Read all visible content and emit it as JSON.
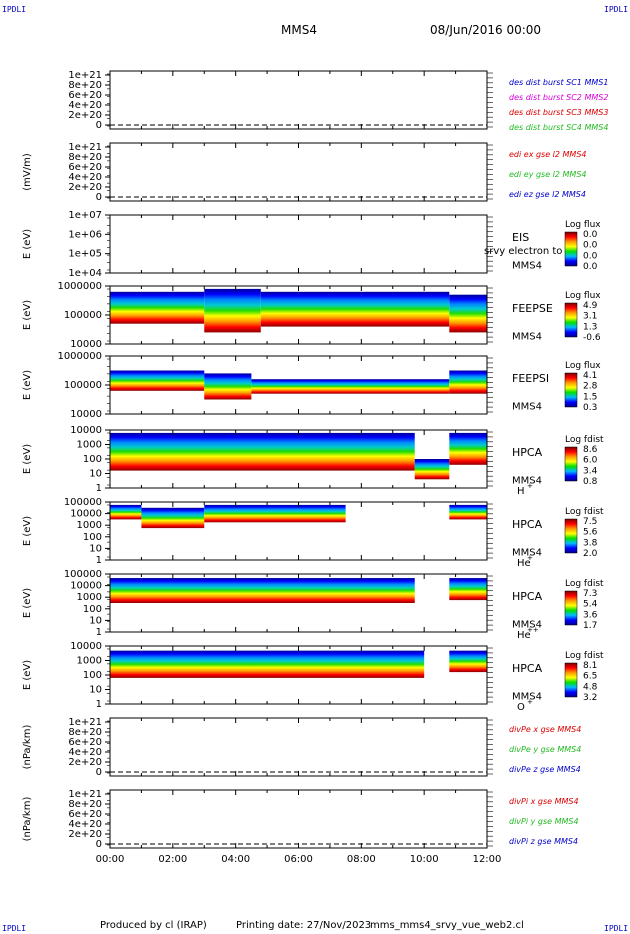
{
  "header": {
    "spacecraft": "MMS4",
    "date": "08/Jun/2016 00:00",
    "corner_label": "IPDLI"
  },
  "footer": {
    "produced_by": "Produced by cl (IRAP)",
    "printing_date": "Printing date: 27/Nov/2023",
    "script": "mms_mms4_srvy_vue_web2.cl"
  },
  "time_axis": {
    "ticks": [
      "00:00",
      "02:00",
      "04:00",
      "06:00",
      "08:00",
      "10:00",
      "12:00"
    ]
  },
  "colors": {
    "red": "#dd0000",
    "green": "#22bb22",
    "blue": "#0000cc",
    "magenta": "#dd00dd",
    "colorbar": [
      "#7a0000",
      "#ff0000",
      "#ff9900",
      "#ffff00",
      "#00e000",
      "#00bbff",
      "#0000ff",
      "#000088"
    ]
  },
  "chart_data": [
    {
      "type": "line",
      "ylabel": "",
      "ytick_labels": [
        "1e+21",
        "8e+20",
        "6e+20",
        "4e+20",
        "2e+20",
        "0"
      ],
      "legend": [
        {
          "text": "des dist burst SC1 MMS1",
          "color": "blue"
        },
        {
          "text": "des dist burst SC2 MMS2",
          "color": "magenta"
        },
        {
          "text": "des dist burst SC3 MMS3",
          "color": "red"
        },
        {
          "text": "des dist burst SC4 MMS4",
          "color": "green"
        }
      ],
      "series": []
    },
    {
      "type": "line",
      "ylabel": "(mV/m)",
      "ytick_labels": [
        "1e+21",
        "8e+20",
        "6e+20",
        "4e+20",
        "2e+20",
        "0"
      ],
      "legend": [
        {
          "text": "edi ex gse l2 MMS4",
          "color": "red"
        },
        {
          "text": "edi ey gse l2 MMS4",
          "color": "green"
        },
        {
          "text": "edi ez gse l2 MMS4",
          "color": "blue"
        }
      ],
      "series": []
    },
    {
      "type": "heatmap",
      "ylabel": "E (eV)",
      "ytick_labels": [
        "1e+07",
        "1e+06",
        "1e+05",
        "1e+04"
      ],
      "instrument": "EIS",
      "extra_label": "srvy electron to",
      "spacecraft": "MMS4",
      "colorbar_title": "Log flux",
      "colorbar_values": [
        "0.0",
        "0.0",
        "0.0",
        "0.0"
      ],
      "segments": []
    },
    {
      "type": "heatmap",
      "ylabel": "E (eV)",
      "ytick_labels": [
        "1000000",
        "100000",
        "10000"
      ],
      "instrument": "FEEPSE",
      "spacecraft": "MMS4",
      "colorbar_title": "Log flux",
      "colorbar_values": [
        "4.9",
        "3.1",
        "1.3",
        "-0.6"
      ],
      "segments": [
        {
          "start": 0.0,
          "end": 3.0,
          "top": 0.9,
          "bottom": 0.35
        },
        {
          "start": 3.0,
          "end": 4.8,
          "top": 0.95,
          "bottom": 0.2
        },
        {
          "start": 4.8,
          "end": 10.8,
          "top": 0.9,
          "bottom": 0.3
        },
        {
          "start": 10.8,
          "end": 12.0,
          "top": 0.85,
          "bottom": 0.2
        }
      ]
    },
    {
      "type": "heatmap",
      "ylabel": "E (eV)",
      "ytick_labels": [
        "1000000",
        "100000",
        "10000"
      ],
      "instrument": "FEEPSI",
      "spacecraft": "MMS4",
      "colorbar_title": "Log flux",
      "colorbar_values": [
        "4.1",
        "2.8",
        "1.5",
        "0.3"
      ],
      "segments": [
        {
          "start": 0.0,
          "end": 3.0,
          "top": 0.75,
          "bottom": 0.4
        },
        {
          "start": 3.0,
          "end": 4.5,
          "top": 0.7,
          "bottom": 0.25
        },
        {
          "start": 4.5,
          "end": 10.8,
          "top": 0.6,
          "bottom": 0.35
        },
        {
          "start": 10.8,
          "end": 12.0,
          "top": 0.75,
          "bottom": 0.35
        }
      ]
    },
    {
      "type": "heatmap",
      "ylabel": "E (eV)",
      "ytick_labels": [
        "10000",
        "1000",
        "100",
        "10",
        "1"
      ],
      "instrument": "HPCA",
      "spacecraft": "MMS4",
      "species": "H",
      "species_charge": "+",
      "colorbar_title": "Log fdist",
      "colorbar_values": [
        "8.6",
        "6.0",
        "3.4",
        "0.8"
      ],
      "segments": [
        {
          "start": 0.0,
          "end": 9.7,
          "top": 0.95,
          "bottom": 0.3
        },
        {
          "start": 9.7,
          "end": 10.8,
          "top": 0.5,
          "bottom": 0.15
        },
        {
          "start": 10.8,
          "end": 12.0,
          "top": 0.95,
          "bottom": 0.4
        }
      ]
    },
    {
      "type": "heatmap",
      "ylabel": "E (eV)",
      "ytick_labels": [
        "100000",
        "10000",
        "1000",
        "100",
        "10",
        "1"
      ],
      "instrument": "HPCA",
      "spacecraft": "MMS4",
      "species": "He",
      "species_charge": "+",
      "colorbar_title": "Log fdist",
      "colorbar_values": [
        "7.5",
        "5.6",
        "3.8",
        "2.0"
      ],
      "segments": [
        {
          "start": 0.0,
          "end": 1.0,
          "top": 0.95,
          "bottom": 0.7
        },
        {
          "start": 1.0,
          "end": 3.0,
          "top": 0.9,
          "bottom": 0.55
        },
        {
          "start": 3.0,
          "end": 7.5,
          "top": 0.95,
          "bottom": 0.65
        },
        {
          "start": 10.8,
          "end": 12.0,
          "top": 0.95,
          "bottom": 0.7
        }
      ]
    },
    {
      "type": "heatmap",
      "ylabel": "E (eV)",
      "ytick_labels": [
        "100000",
        "10000",
        "1000",
        "100",
        "10",
        "1"
      ],
      "instrument": "HPCA",
      "spacecraft": "MMS4",
      "species": "He",
      "species_charge": "++",
      "colorbar_title": "Log fdist",
      "colorbar_values": [
        "7.3",
        "5.4",
        "3.6",
        "1.7"
      ],
      "segments": [
        {
          "start": 0.0,
          "end": 9.7,
          "top": 0.93,
          "bottom": 0.5
        },
        {
          "start": 10.8,
          "end": 12.0,
          "top": 0.93,
          "bottom": 0.55
        }
      ]
    },
    {
      "type": "heatmap",
      "ylabel": "E (eV)",
      "ytick_labels": [
        "10000",
        "1000",
        "100",
        "10",
        "1"
      ],
      "instrument": "HPCA",
      "spacecraft": "MMS4",
      "species": "O",
      "species_charge": "+",
      "colorbar_title": "Log fdist",
      "colorbar_values": [
        "8.1",
        "6.5",
        "4.8",
        "3.2"
      ],
      "segments": [
        {
          "start": 0.0,
          "end": 10.0,
          "top": 0.92,
          "bottom": 0.45
        },
        {
          "start": 10.8,
          "end": 12.0,
          "top": 0.92,
          "bottom": 0.55
        }
      ]
    },
    {
      "type": "line",
      "ylabel": "(nPa/km)",
      "ytick_labels": [
        "1e+21",
        "8e+20",
        "6e+20",
        "4e+20",
        "2e+20",
        "0"
      ],
      "legend": [
        {
          "text": "divPe x gse MMS4",
          "color": "red"
        },
        {
          "text": "divPe y gse MMS4",
          "color": "green"
        },
        {
          "text": "divPe z gse MMS4",
          "color": "blue"
        }
      ],
      "series": []
    },
    {
      "type": "line",
      "ylabel": "(nPa/km)",
      "ytick_labels": [
        "1e+21",
        "8e+20",
        "6e+20",
        "4e+20",
        "2e+20",
        "0"
      ],
      "legend": [
        {
          "text": "divPi x gse MMS4",
          "color": "red"
        },
        {
          "text": "divPi y gse MMS4",
          "color": "green"
        },
        {
          "text": "divPi z gse MMS4",
          "color": "blue"
        }
      ],
      "series": []
    }
  ]
}
